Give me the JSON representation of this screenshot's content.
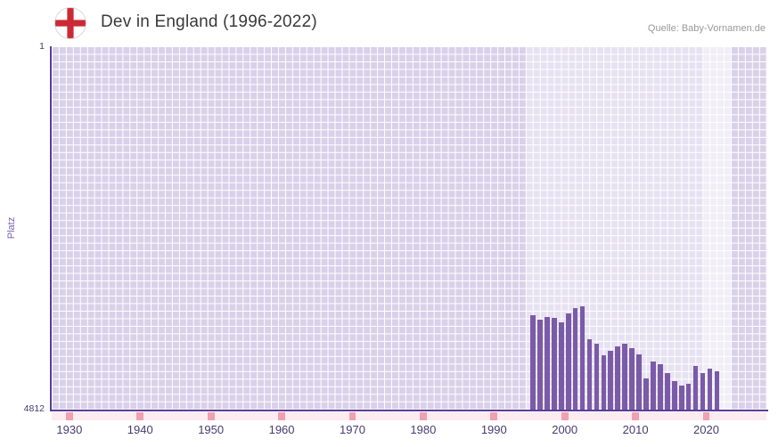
{
  "header": {
    "title": "Dev in England (1996-2022)",
    "source": "Quelle: Baby-Vornamen.de",
    "flag_icon": "england-flag-icon"
  },
  "chart_data": {
    "type": "bar",
    "title": "Dev in England (1996-2022)",
    "xlabel": "",
    "ylabel": "Platz",
    "y_axis": {
      "min": 1,
      "max": 4812,
      "inverted": true,
      "top_label": "1",
      "bottom_label": "4812"
    },
    "x_axis": {
      "min": 1927.5,
      "max": 2028.5,
      "ticks": [
        1930,
        1940,
        1950,
        1960,
        1970,
        1980,
        1990,
        2000,
        2010,
        2020
      ]
    },
    "x": [
      1996,
      1997,
      1998,
      1999,
      2000,
      2001,
      2002,
      2003,
      2004,
      2005,
      2006,
      2007,
      2008,
      2009,
      2010,
      2011,
      2012,
      2013,
      2014,
      2015,
      2016,
      2017,
      2018,
      2019,
      2020,
      2021,
      2022
    ],
    "ranks": [
      3560,
      3620,
      3580,
      3600,
      3660,
      3540,
      3470,
      3440,
      3880,
      3940,
      4090,
      4030,
      3970,
      3940,
      4000,
      4080,
      4400,
      4170,
      4210,
      4330,
      4440,
      4490,
      4470,
      4230,
      4330,
      4270,
      4300
    ],
    "highlight_bands": [
      {
        "from": 1994.5,
        "to": 2023.5,
        "alpha": 0.38
      },
      {
        "from": 2019.5,
        "to": 2023.5,
        "alpha": 0.42
      }
    ],
    "grid": true,
    "legend": "none",
    "colors": {
      "bar": "#7b5ba8",
      "grid_base": "#d9d1ea",
      "grid_line": "#ffffff",
      "axis": "#5a3d99",
      "tick_text": "#453c70",
      "y_label": "#7a5fb5",
      "title_text": "#3a3a3a",
      "source_text": "#999999",
      "strip_bg": "#fcebf0",
      "decade_marker": "#f0a0b0",
      "flag_red": "#cc2936"
    }
  }
}
